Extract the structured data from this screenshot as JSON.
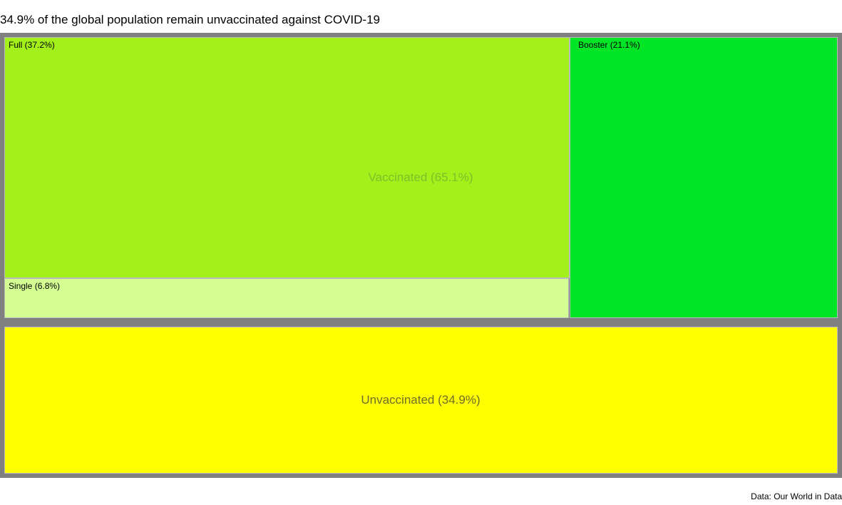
{
  "chart_data": {
    "type": "treemap",
    "title": "34.9% of the global population remain unvaccinated against COVID-19",
    "caption": "Data: Our World in Data",
    "groups": [
      {
        "label": "Vaccinated (65.1%)",
        "value": 65.1,
        "label_color": "#7fbf2a",
        "children": [
          {
            "label": "Full (37.2%)",
            "value": 37.2,
            "color": "#a3f01b"
          },
          {
            "label": "Single (6.8%)",
            "value": 6.8,
            "color": "#d4fe92"
          },
          {
            "label": "Booster (21.1%)",
            "value": 21.1,
            "color": "#00e626"
          }
        ]
      },
      {
        "label": "Unvaccinated (34.9%)",
        "value": 34.9,
        "label_color": "#6e6e28",
        "color": "#ffff00"
      }
    ]
  }
}
